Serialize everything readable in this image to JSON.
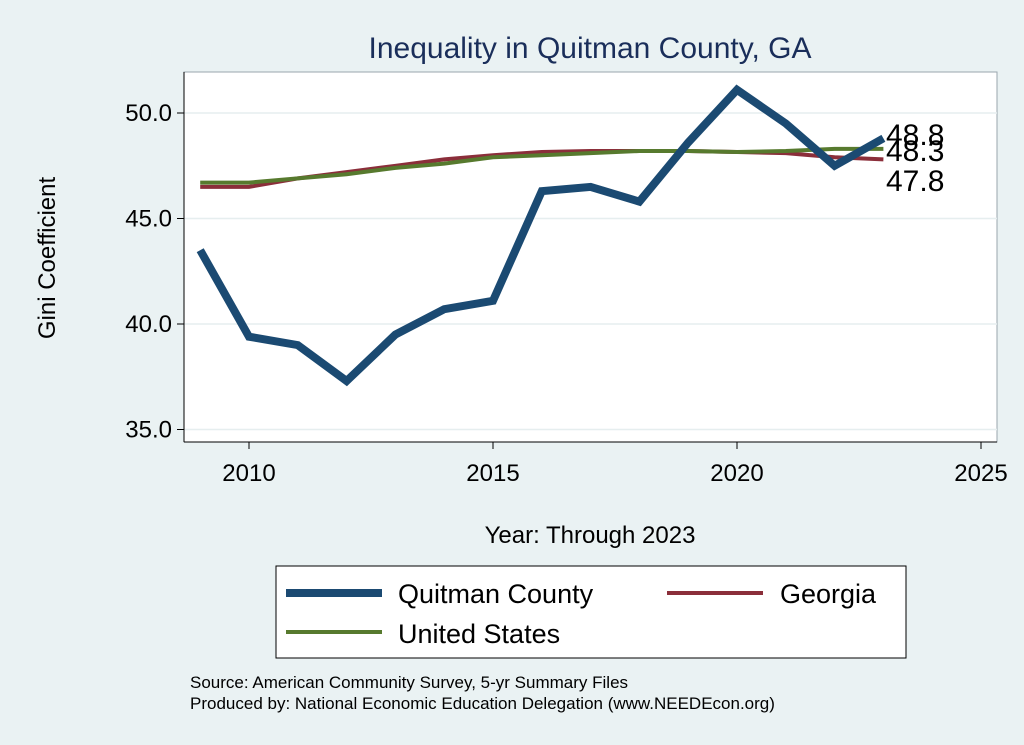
{
  "chart_data": {
    "type": "line",
    "title": "Inequality in Quitman County, GA",
    "xlabel": "Year: Through 2023",
    "ylabel": "Gini Coefficient",
    "xlim": [
      2008.6,
      2025.6
    ],
    "ylim": [
      34.2,
      52.0
    ],
    "x_ticks": [
      2010,
      2015,
      2020,
      2025
    ],
    "x_tick_labels": [
      "2010",
      "2015",
      "2020",
      "2025"
    ],
    "y_ticks": [
      35,
      40,
      45,
      50
    ],
    "y_tick_labels": [
      "35.0",
      "40.0",
      "45.0",
      "50.0"
    ],
    "grid": true,
    "legend_position": "bottom",
    "series": [
      {
        "name": "Quitman County",
        "color": "#1b4a72",
        "x": [
          2009,
          2010,
          2011,
          2012,
          2013,
          2014,
          2015,
          2016,
          2017,
          2018,
          2019,
          2020,
          2021,
          2022,
          2023
        ],
        "values": [
          43.5,
          39.4,
          39.0,
          37.3,
          39.5,
          40.7,
          41.1,
          46.3,
          46.5,
          45.8,
          48.6,
          51.1,
          49.5,
          47.5,
          48.8
        ],
        "end_label": "48.8"
      },
      {
        "name": "Georgia",
        "color": "#8b2e3a",
        "x": [
          2009,
          2010,
          2011,
          2012,
          2013,
          2014,
          2015,
          2016,
          2017,
          2018,
          2019,
          2020,
          2021,
          2022,
          2023
        ],
        "values": [
          46.5,
          46.5,
          46.9,
          47.2,
          47.5,
          47.8,
          48.0,
          48.15,
          48.2,
          48.2,
          48.2,
          48.15,
          48.1,
          47.9,
          47.8
        ],
        "end_label": "47.8"
      },
      {
        "name": "United States",
        "color": "#577a2e",
        "x": [
          2009,
          2010,
          2011,
          2012,
          2013,
          2014,
          2015,
          2016,
          2017,
          2018,
          2019,
          2020,
          2021,
          2022,
          2023
        ],
        "values": [
          46.7,
          46.7,
          46.9,
          47.1,
          47.4,
          47.6,
          47.9,
          48.0,
          48.1,
          48.2,
          48.2,
          48.15,
          48.2,
          48.3,
          48.3
        ],
        "end_label": "48.3"
      }
    ],
    "notes": [
      "Source: American Community Survey, 5-yr Summary Files",
      "Produced by: National Economic Education Delegation (www.NEEDEcon.org)"
    ]
  }
}
